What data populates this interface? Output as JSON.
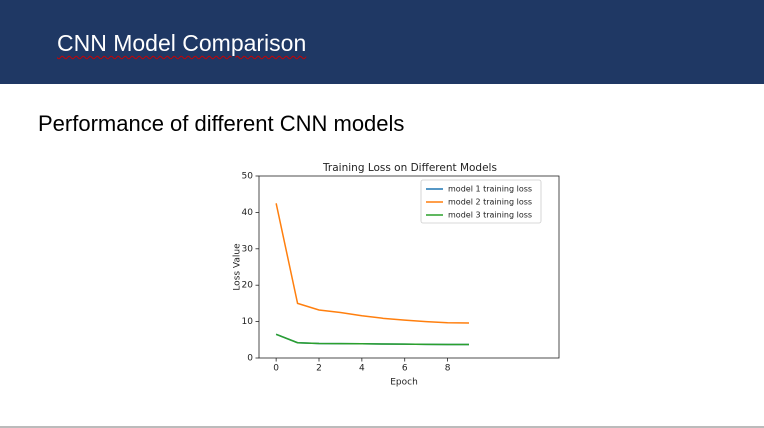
{
  "slide": {
    "title": "CNN Model Comparison",
    "subtitle": "Performance of different CNN models"
  },
  "chart_data": {
    "type": "line",
    "title": "Training Loss on Different Models",
    "xlabel": "Epoch",
    "ylabel": "Loss Value",
    "x": [
      0,
      1,
      2,
      3,
      4,
      5,
      6,
      7,
      8,
      9
    ],
    "series": [
      {
        "name": "model 1 training loss",
        "color": "#1f77b4",
        "values": [
          6.5,
          4.2,
          4.0,
          3.95,
          3.9,
          3.85,
          3.8,
          3.75,
          3.7,
          3.7
        ]
      },
      {
        "name": "model 2 training loss",
        "color": "#ff7f0e",
        "values": [
          42.5,
          15.0,
          13.2,
          12.5,
          11.6,
          10.9,
          10.4,
          10.0,
          9.7,
          9.6
        ]
      },
      {
        "name": "model 3 training loss",
        "color": "#2ca02c",
        "values": [
          6.5,
          4.2,
          4.0,
          3.95,
          3.9,
          3.85,
          3.8,
          3.75,
          3.7,
          3.7
        ]
      }
    ],
    "xlim": [
      -0.8,
      13.2
    ],
    "ylim": [
      0,
      50
    ],
    "xticks": [
      0,
      2,
      4,
      6,
      8
    ],
    "yticks": [
      0,
      10,
      20,
      30,
      40,
      50
    ],
    "legend": "upper right"
  }
}
